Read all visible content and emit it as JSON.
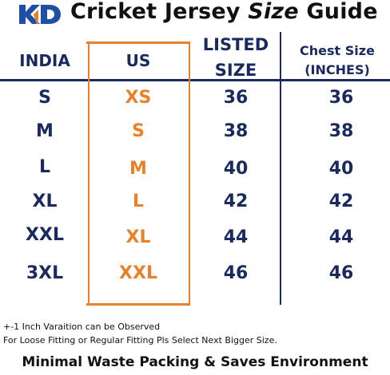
{
  "brand": {
    "logo_text": "KD",
    "colors": {
      "navy": "#1a2a5e",
      "orange": "#e8822a",
      "logo_blue": "#1e4fa8"
    }
  },
  "header": {
    "title_prefix": "Cricket Jersey ",
    "title_emphasis": "Size",
    "title_suffix": " Guide"
  },
  "table": {
    "columns": {
      "india": "INDIA",
      "us": "US",
      "listed_line1": "LISTED",
      "listed_line2": "SIZE",
      "chest_line1": "Chest Size",
      "chest_line2": "(INCHES)"
    },
    "rows": [
      {
        "india": "S",
        "us": "XS",
        "listed": "36",
        "chest": "36"
      },
      {
        "india": "M",
        "us": "S",
        "listed": "38",
        "chest": "38"
      },
      {
        "india": "L",
        "us": "M",
        "listed": "40",
        "chest": "40"
      },
      {
        "india": "XL",
        "us": "L",
        "listed": "42",
        "chest": "42"
      },
      {
        "india": "XXL",
        "us": "XL",
        "listed": "44",
        "chest": "44"
      },
      {
        "india": "3XL",
        "us": "XXL",
        "listed": "46",
        "chest": "46"
      }
    ]
  },
  "notes": {
    "line1": "+-1 Inch Varaition can be Observed",
    "line2": "For Loose Fitting or Regular Fitting Pls Select Next Bigger Size."
  },
  "footer": "Minimal Waste Packing & Saves Environment"
}
